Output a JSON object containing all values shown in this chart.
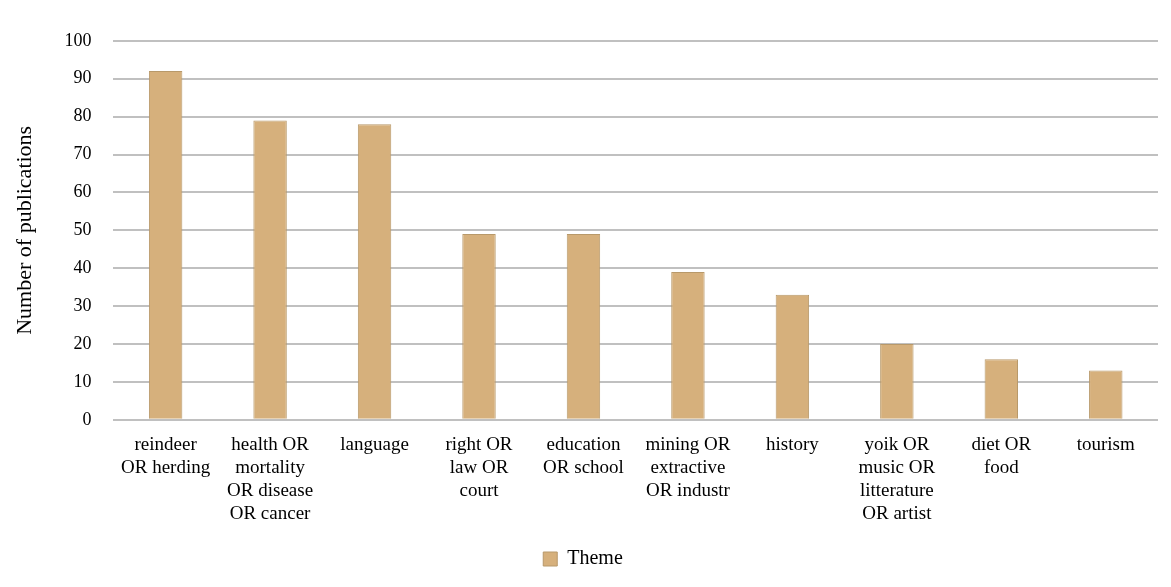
{
  "chart_data": {
    "type": "bar",
    "ylabel": "Number of publications",
    "categories": [
      "reindeer OR herding",
      "health OR mortality OR disease OR cancer",
      "language",
      "right OR law OR court",
      "education OR school",
      "mining OR extractive OR industr",
      "history",
      "yoik OR music OR litterature OR artist",
      "diet OR food",
      "tourism"
    ],
    "series": [
      {
        "name": "Theme",
        "color": "#d6b07c",
        "values": [
          92,
          79,
          78,
          49,
          49,
          39,
          33,
          20,
          16,
          13
        ]
      }
    ],
    "ylim": [
      0,
      100
    ],
    "yticks": [
      0,
      10,
      20,
      30,
      40,
      50,
      60,
      70,
      80,
      90,
      100
    ],
    "grid": "y",
    "legend": "bottom"
  }
}
